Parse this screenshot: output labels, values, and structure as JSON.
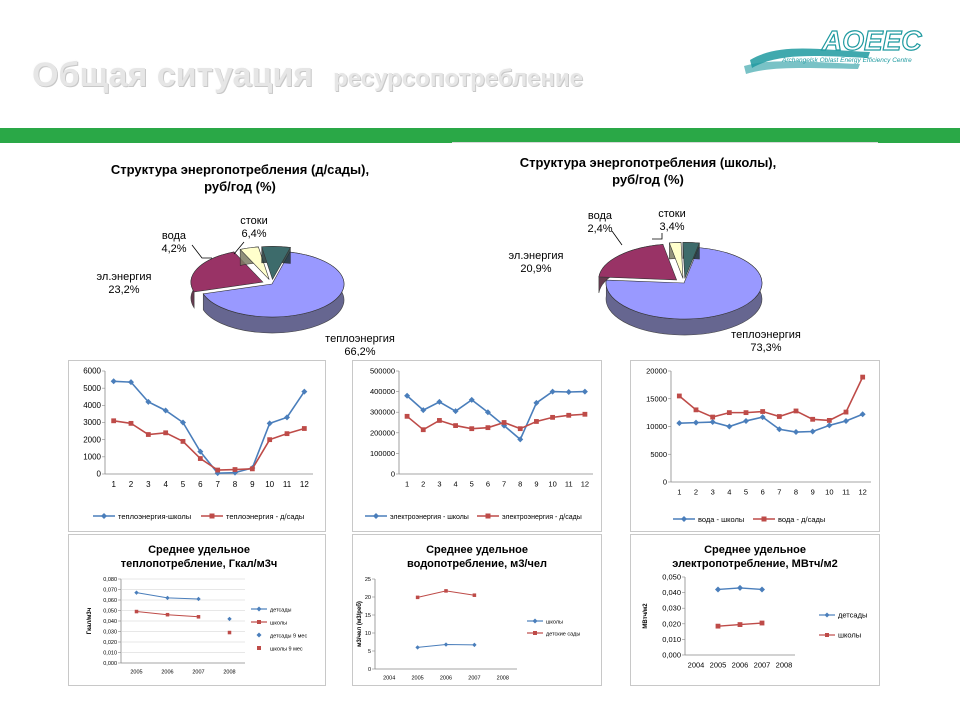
{
  "header": {
    "title": "Общая ситуация",
    "subtitle": "ресурсопотребление",
    "logo_text": "AOEEC",
    "logo_subtext": "Archangelsk Oblast Energy Efficiency Centre"
  },
  "colors": {
    "green_bar": "#2aa847",
    "blue_series": "#4a7ebb",
    "red_series": "#be4b48",
    "pie_blue": "#9999ff",
    "pie_maroon": "#993366",
    "pie_cream": "#ffffcc",
    "pie_teal": "#3d6b6b",
    "pie_edge": "#5a5a99"
  },
  "chart_data": [
    {
      "id": "pie_kindergartens",
      "type": "pie",
      "title_line1": "Структура энергопотребления (д/сады),",
      "title_line2": "руб/год (%)",
      "slices": [
        {
          "label": "теплоэнергия",
          "value_text": "66,2%",
          "value": 66.2,
          "color": "#9999ff"
        },
        {
          "label": "эл.энергия",
          "value_text": "23,2%",
          "value": 23.2,
          "color": "#993366"
        },
        {
          "label": "вода",
          "value_text": "4,2%",
          "value": 4.2,
          "color": "#ffffcc"
        },
        {
          "label": "стоки",
          "value_text": "6,4%",
          "value": 6.4,
          "color": "#3d6b6b"
        }
      ]
    },
    {
      "id": "pie_schools",
      "type": "pie",
      "title_line1": "Структура энергопотребления (школы),",
      "title_line2": "руб/год (%)",
      "slices": [
        {
          "label": "теплоэнергия",
          "value_text": "73,3%",
          "value": 73.3,
          "color": "#9999ff"
        },
        {
          "label": "эл.энергия",
          "value_text": "20,9%",
          "value": 20.9,
          "color": "#993366"
        },
        {
          "label": "вода",
          "value_text": "2,4%",
          "value": 2.4,
          "color": "#ffffcc"
        },
        {
          "label": "стоки",
          "value_text": "3,4%",
          "value": 3.4,
          "color": "#3d6b6b"
        }
      ]
    },
    {
      "id": "heat_monthly",
      "type": "line",
      "categories": [
        "1",
        "2",
        "3",
        "4",
        "5",
        "6",
        "7",
        "8",
        "9",
        "10",
        "11",
        "12"
      ],
      "ylim": [
        0,
        6000
      ],
      "yticks": [
        "0",
        "1000",
        "2000",
        "3000",
        "4000",
        "5000",
        "6000"
      ],
      "legend": "bottom",
      "series": [
        {
          "name": "теплоэнергия-школы",
          "values": [
            5400,
            5350,
            4200,
            3700,
            3000,
            1300,
            50,
            80,
            350,
            2950,
            3300,
            4800
          ]
        },
        {
          "name": "теплоэнергия - д/сады",
          "values": [
            3100,
            2950,
            2300,
            2400,
            1900,
            900,
            230,
            260,
            300,
            2000,
            2350,
            2650
          ]
        }
      ]
    },
    {
      "id": "electricity_monthly",
      "type": "line",
      "categories": [
        "1",
        "2",
        "3",
        "4",
        "5",
        "6",
        "7",
        "8",
        "9",
        "10",
        "11",
        "12"
      ],
      "ylim": [
        0,
        500000
      ],
      "yticks": [
        "0",
        "100000",
        "200000",
        "300000",
        "400000",
        "500000"
      ],
      "legend": "bottom",
      "series": [
        {
          "name": "электроэнергия - школы",
          "values": [
            380000,
            310000,
            350000,
            305000,
            360000,
            300000,
            235000,
            168000,
            345000,
            400000,
            398000,
            400000
          ]
        },
        {
          "name": "электроэнергия - д/сады",
          "values": [
            280000,
            215000,
            260000,
            235000,
            220000,
            225000,
            250000,
            220000,
            255000,
            275000,
            285000,
            290000
          ]
        }
      ]
    },
    {
      "id": "water_monthly",
      "type": "line",
      "categories": [
        "1",
        "2",
        "3",
        "4",
        "5",
        "6",
        "7",
        "8",
        "9",
        "10",
        "11",
        "12"
      ],
      "ylim": [
        0,
        20000
      ],
      "yticks": [
        "0",
        "5000",
        "10000",
        "15000",
        "20000"
      ],
      "legend": "bottom",
      "series": [
        {
          "name": "вода - школы",
          "values": [
            10600,
            10700,
            10800,
            10000,
            11000,
            11700,
            9500,
            9000,
            9100,
            10200,
            11000,
            12200
          ]
        },
        {
          "name": "вода - д/сады",
          "values": [
            15500,
            13000,
            11700,
            12500,
            12500,
            12700,
            11800,
            12800,
            11300,
            11100,
            12600,
            18900
          ]
        }
      ]
    },
    {
      "id": "heat_specific",
      "type": "line",
      "title_line1": "Среднее удельное",
      "title_line2": "теплопотребление, Гкал/м3ч",
      "ylabel": "Гкал/м3ч",
      "categories": [
        "2005",
        "2006",
        "2007",
        "2008"
      ],
      "ylim": [
        0,
        0.08
      ],
      "yticks": [
        "0,000",
        "0,010",
        "0,020",
        "0,030",
        "0,040",
        "0,050",
        "0,060",
        "0,070",
        "0,080"
      ],
      "legend": "right",
      "series": [
        {
          "name": "детсады",
          "values": [
            0.067,
            0.062,
            0.061,
            null
          ]
        },
        {
          "name": "школы",
          "values": [
            0.049,
            0.046,
            0.044,
            null
          ]
        },
        {
          "name": "детсады 9 мес",
          "values": [
            null,
            null,
            null,
            0.042
          ]
        },
        {
          "name": "школы 9 мес",
          "values": [
            null,
            null,
            null,
            0.029
          ]
        }
      ]
    },
    {
      "id": "water_specific",
      "type": "line",
      "title_line1": "Среднее удельное",
      "title_line2": "водопотребление, м3/чел",
      "ylabel": "м3/чел (м3/реб)",
      "categories": [
        "2004",
        "2005",
        "2006",
        "2007",
        "2008"
      ],
      "ylim": [
        0,
        25
      ],
      "yticks": [
        "0",
        "5",
        "10",
        "15",
        "20",
        "25"
      ],
      "legend": "right",
      "series": [
        {
          "name": "школы",
          "values": [
            null,
            6.0,
            6.8,
            6.7,
            null
          ]
        },
        {
          "name": "детские сады",
          "values": [
            null,
            19.9,
            21.7,
            20.5,
            null
          ]
        }
      ]
    },
    {
      "id": "electricity_specific",
      "type": "line",
      "title_line1": "Среднее удельное",
      "title_line2": "электропотребление, МВтч/м2",
      "ylabel": "МВтч/м2",
      "categories": [
        "2004",
        "2005",
        "2006",
        "2007",
        "2008"
      ],
      "ylim": [
        0,
        0.05
      ],
      "yticks": [
        "0,000",
        "0,010",
        "0,020",
        "0,030",
        "0,040",
        "0,050"
      ],
      "legend": "right",
      "series": [
        {
          "name": "детсады",
          "values": [
            null,
            0.042,
            0.043,
            0.042,
            null
          ]
        },
        {
          "name": "школы",
          "values": [
            null,
            0.0185,
            0.0195,
            0.0205,
            null
          ]
        }
      ]
    }
  ]
}
